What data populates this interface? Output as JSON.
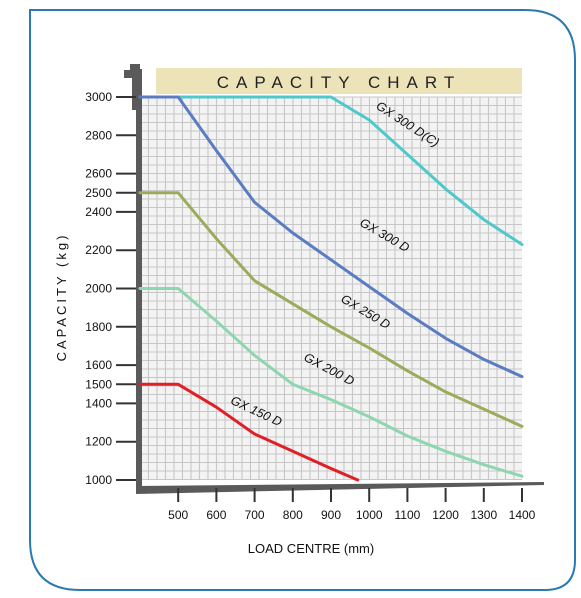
{
  "chart_data": {
    "type": "line",
    "title": "CAPACITY CHART",
    "xlabel": "LOAD CENTRE (mm)",
    "ylabel": "CAPACITY (kg)",
    "xlim": [
      400,
      1400
    ],
    "ylim": [
      1000,
      3000
    ],
    "x_ticks": [
      500,
      600,
      700,
      800,
      900,
      1000,
      1100,
      1200,
      1300,
      1400
    ],
    "y_ticks": [
      1000,
      1200,
      1400,
      1500,
      1600,
      1800,
      2000,
      2200,
      2400,
      2500,
      2600,
      2800,
      3000
    ],
    "grid": true,
    "series": [
      {
        "name": "GX 300 D(C)",
        "color": "#4fc8cc",
        "points": [
          [
            400,
            3000
          ],
          [
            900,
            3000
          ],
          [
            1000,
            2880
          ],
          [
            1100,
            2700
          ],
          [
            1200,
            2520
          ],
          [
            1300,
            2360
          ],
          [
            1400,
            2230
          ]
        ]
      },
      {
        "name": "GX 300 D",
        "color": "#5b7cc2",
        "points": [
          [
            400,
            3000
          ],
          [
            500,
            3000
          ],
          [
            600,
            2720
          ],
          [
            700,
            2450
          ],
          [
            800,
            2290
          ],
          [
            900,
            2150
          ],
          [
            1000,
            2010
          ],
          [
            1100,
            1870
          ],
          [
            1200,
            1740
          ],
          [
            1300,
            1630
          ],
          [
            1400,
            1540
          ]
        ]
      },
      {
        "name": "GX 250 D",
        "color": "#9aac5c",
        "points": [
          [
            400,
            2500
          ],
          [
            500,
            2500
          ],
          [
            600,
            2260
          ],
          [
            700,
            2040
          ],
          [
            800,
            1920
          ],
          [
            900,
            1800
          ],
          [
            1000,
            1690
          ],
          [
            1100,
            1570
          ],
          [
            1200,
            1460
          ],
          [
            1300,
            1370
          ],
          [
            1400,
            1280
          ]
        ]
      },
      {
        "name": "GX 200 D",
        "color": "#8fd6b0",
        "points": [
          [
            400,
            2000
          ],
          [
            500,
            2000
          ],
          [
            600,
            1830
          ],
          [
            700,
            1650
          ],
          [
            800,
            1500
          ],
          [
            900,
            1420
          ],
          [
            1000,
            1330
          ],
          [
            1100,
            1230
          ],
          [
            1200,
            1150
          ],
          [
            1300,
            1080
          ],
          [
            1400,
            1020
          ]
        ]
      },
      {
        "name": "GX 150 D",
        "color": "#e01f26",
        "points": [
          [
            400,
            1500
          ],
          [
            500,
            1500
          ],
          [
            600,
            1380
          ],
          [
            700,
            1240
          ],
          [
            800,
            1150
          ],
          [
            900,
            1060
          ],
          [
            970,
            1000
          ]
        ]
      }
    ],
    "title_bar_color": "#ede3b8",
    "grid_color": "#c7c7c7",
    "frame_color": "#2a7ab0"
  }
}
